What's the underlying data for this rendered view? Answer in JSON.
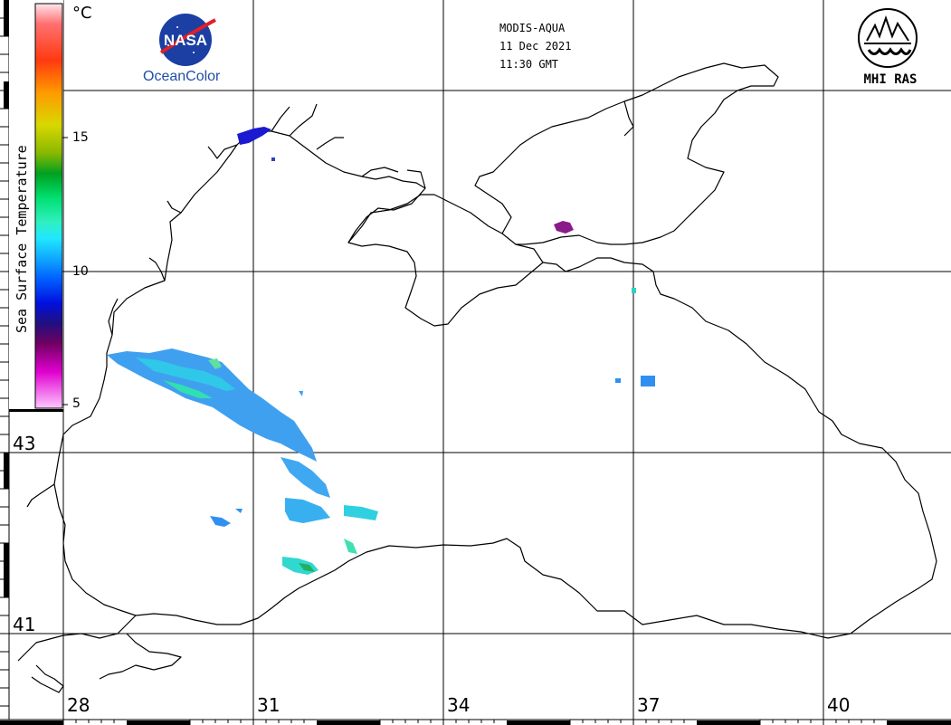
{
  "header": {
    "sensor": "MODIS-AQUA",
    "date": "11 Dec 2021",
    "time": "11:30 GMT"
  },
  "logos": {
    "nasa_text": "NASA",
    "ocean_color": "OceanColor",
    "org": "MHI RAS"
  },
  "legend": {
    "title": "Sea Surface Temperature",
    "unit": "°C",
    "ticks": [
      "15",
      "10",
      "5"
    ]
  },
  "axes": {
    "longitudes": [
      "28",
      "31",
      "34",
      "37",
      "40"
    ],
    "latitudes": [
      "43",
      "41"
    ]
  },
  "colors": {
    "background": "#ffffff",
    "coastline": "#000000",
    "grid": "#000000",
    "nasa_blue": "#1b3fa3",
    "nasa_red": "#e01f26"
  }
}
